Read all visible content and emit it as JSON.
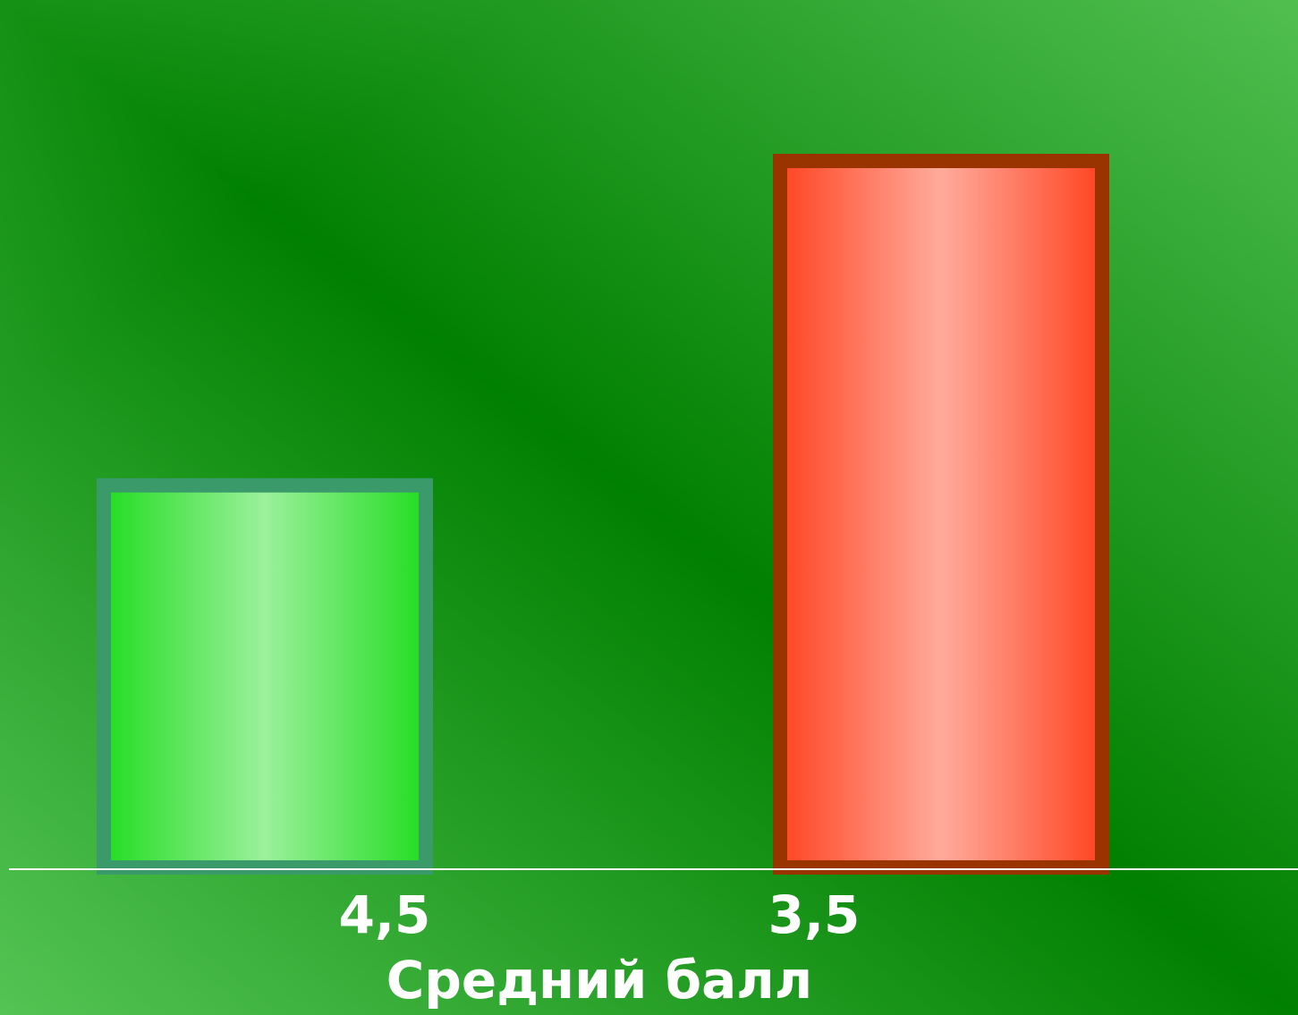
{
  "chart_data": {
    "type": "bar",
    "categories": [
      "4,5",
      "3,5"
    ],
    "values": [
      6,
      11
    ],
    "colors": [
      "#22dd22",
      "#ff4422"
    ],
    "edge_colors": [
      "#3a9a6a",
      "#993300"
    ],
    "xlabel": "Средний балл"
  }
}
